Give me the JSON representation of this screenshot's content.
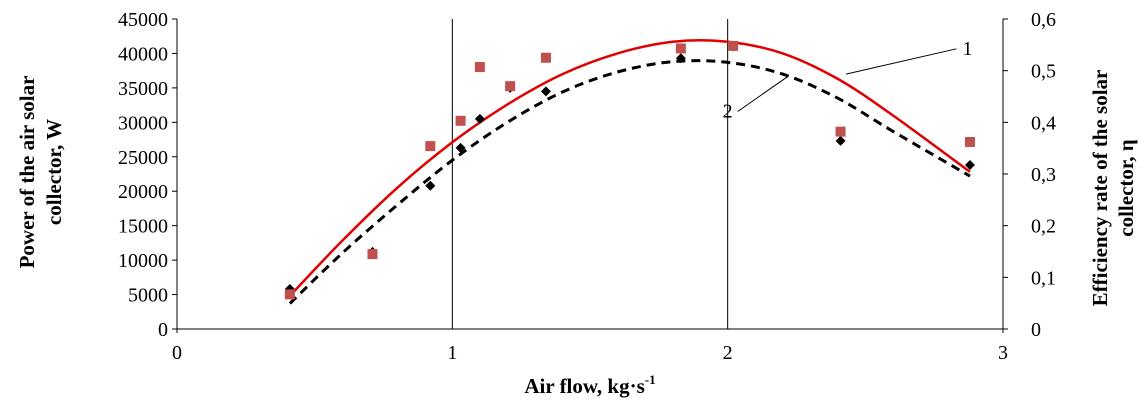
{
  "chart_data": {
    "type": "scatter",
    "xlabel": "Air flow, kg·s",
    "xlabel_sup": "-1",
    "ylabel_left_line1": "Power of the air solar",
    "ylabel_left_line2": "collector, W",
    "ylabel_right_line1": "Efficiency rate of the solar",
    "ylabel_right_line2": "collector, η",
    "xlim": [
      0,
      3
    ],
    "ylim_left": [
      0,
      45000
    ],
    "ylim_right": [
      0,
      0.6
    ],
    "x_ticks": [
      "0",
      "1",
      "2",
      "3"
    ],
    "y_left_ticks": [
      "0",
      "5000",
      "10000",
      "15000",
      "20000",
      "25000",
      "30000",
      "35000",
      "40000",
      "45000"
    ],
    "y_right_ticks": [
      "0",
      "0,1",
      "0,2",
      "0,3",
      "0,4",
      "0,5",
      "0,6"
    ],
    "grid": "vertical",
    "series": [
      {
        "marker": "diamond",
        "axis": "left",
        "color": "#000000",
        "points": [
          {
            "x": 0.41,
            "y": 5800
          },
          {
            "x": 0.71,
            "y": 11200
          },
          {
            "x": 0.92,
            "y": 20800
          },
          {
            "x": 1.03,
            "y": 26300
          },
          {
            "x": 1.1,
            "y": 30500
          },
          {
            "x": 1.21,
            "y": 35000
          },
          {
            "x": 1.34,
            "y": 34500
          },
          {
            "x": 1.83,
            "y": 39300
          },
          {
            "x": 2.02,
            "y": 41000
          },
          {
            "x": 2.41,
            "y": 27300
          },
          {
            "x": 2.88,
            "y": 23800
          }
        ]
      },
      {
        "marker": "square",
        "axis": "right",
        "color": "#c0504d",
        "points": [
          {
            "x": 0.41,
            "y": 0.067
          },
          {
            "x": 0.71,
            "y": 0.145
          },
          {
            "x": 0.92,
            "y": 0.354
          },
          {
            "x": 1.03,
            "y": 0.403
          },
          {
            "x": 1.1,
            "y": 0.507
          },
          {
            "x": 1.21,
            "y": 0.47
          },
          {
            "x": 1.34,
            "y": 0.525
          },
          {
            "x": 1.83,
            "y": 0.543
          },
          {
            "x": 2.02,
            "y": 0.548
          },
          {
            "x": 2.41,
            "y": 0.382
          },
          {
            "x": 2.88,
            "y": 0.362
          }
        ]
      }
    ],
    "curves": [
      {
        "label": "1",
        "style": "solid",
        "color": "#e00000",
        "axis": "left",
        "points": [
          [
            0.41,
            4800
          ],
          [
            0.6,
            12800
          ],
          [
            0.8,
            20500
          ],
          [
            1.0,
            27100
          ],
          [
            1.2,
            32600
          ],
          [
            1.4,
            37000
          ],
          [
            1.6,
            40000
          ],
          [
            1.8,
            41700
          ],
          [
            2.0,
            41700
          ],
          [
            2.2,
            40000
          ],
          [
            2.4,
            36300
          ],
          [
            2.6,
            31000
          ],
          [
            2.88,
            22800
          ]
        ]
      },
      {
        "label": "2",
        "style": "dashed",
        "color": "#000000",
        "axis": "left",
        "points": [
          [
            0.41,
            3700
          ],
          [
            0.6,
            11000
          ],
          [
            0.8,
            18000
          ],
          [
            1.0,
            24500
          ],
          [
            1.2,
            30000
          ],
          [
            1.4,
            34400
          ],
          [
            1.6,
            37300
          ],
          [
            1.8,
            38800
          ],
          [
            2.0,
            38700
          ],
          [
            2.2,
            37000
          ],
          [
            2.4,
            33500
          ],
          [
            2.6,
            28700
          ],
          [
            2.88,
            22200
          ]
        ]
      }
    ],
    "annotations": [
      {
        "text": "1",
        "curve": 0
      },
      {
        "text": "2",
        "curve": 1
      }
    ]
  }
}
